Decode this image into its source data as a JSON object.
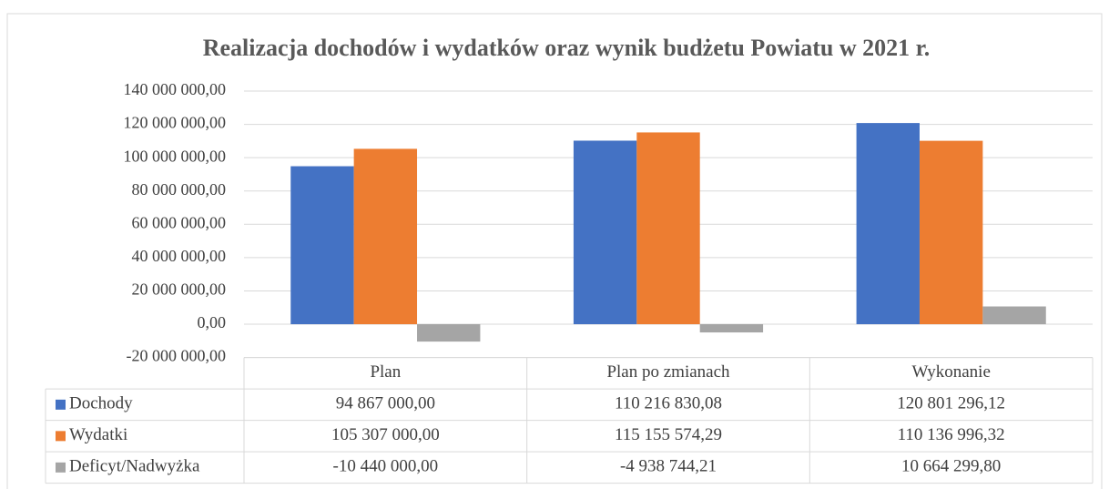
{
  "chart_data": {
    "type": "bar",
    "title": "Realizacja dochodów i wydatków oraz wynik budżetu Powiatu w 2021 r.",
    "categories": [
      "Plan",
      "Plan po zmianach",
      "Wykonanie"
    ],
    "series": [
      {
        "name": "Dochody",
        "color": "#4472c4",
        "values": [
          94867000,
          110216830.08,
          120801296.12
        ],
        "value_labels": [
          "94 867 000,00",
          "110 216 830,08",
          "120 801 296,12"
        ]
      },
      {
        "name": "Wydatki",
        "color": "#ed7d31",
        "values": [
          105307000,
          115155574.29,
          110136996.32
        ],
        "value_labels": [
          "105 307 000,00",
          "115 155 574,29",
          "110 136 996,32"
        ]
      },
      {
        "name": "Deficyt/Nadwyżka",
        "color": "#a5a5a5",
        "values": [
          -10440000,
          -4938744.21,
          10664299.8
        ],
        "value_labels": [
          "-10 440 000,00",
          "-4 938 744,21",
          "10 664 299,80"
        ]
      }
    ],
    "ylim": [
      -20000000,
      140000000
    ],
    "yticks": [
      {
        "value": -20000000,
        "label": "-20 000 000,00"
      },
      {
        "value": 0,
        "label": "0,00"
      },
      {
        "value": 20000000,
        "label": "20 000 000,00"
      },
      {
        "value": 40000000,
        "label": "40 000 000,00"
      },
      {
        "value": 60000000,
        "label": "60 000 000,00"
      },
      {
        "value": 80000000,
        "label": "80 000 000,00"
      },
      {
        "value": 100000000,
        "label": "100 000 000,00"
      },
      {
        "value": 120000000,
        "label": "120 000 000,00"
      },
      {
        "value": 140000000,
        "label": "140 000 000,00"
      }
    ],
    "grid": true,
    "data_table": true
  }
}
